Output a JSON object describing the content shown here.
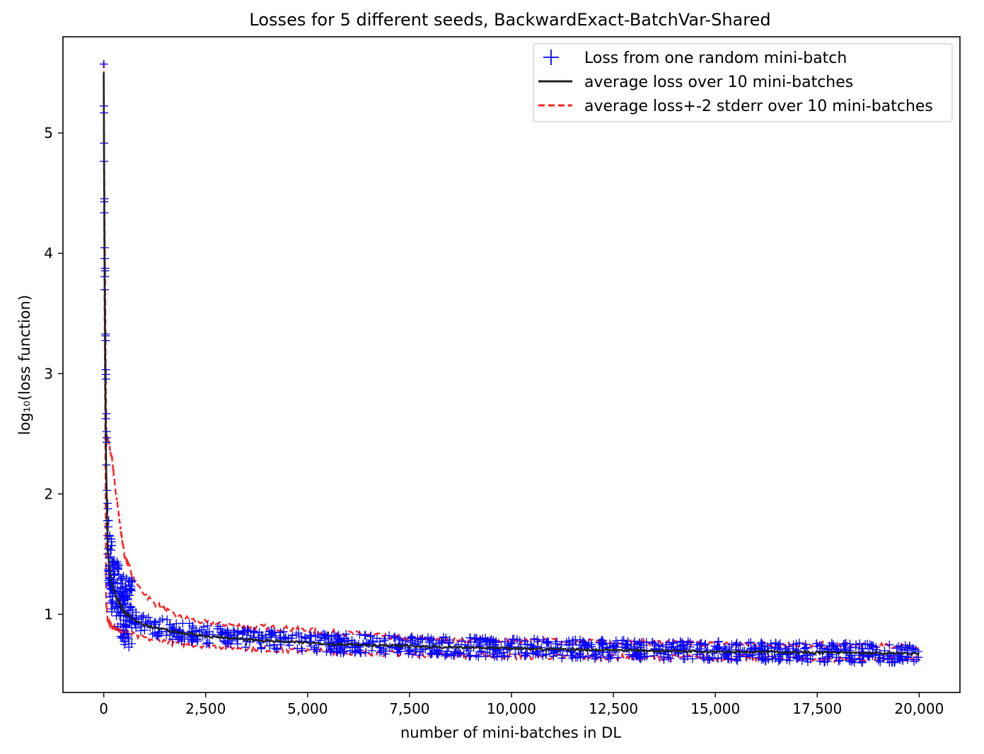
{
  "chart_data": {
    "type": "line",
    "title": "Losses for 5 different seeds, BackwardExact-BatchVar-Shared",
    "xlabel": "number of mini-batches in DL",
    "ylabel": "log₁₀(loss function)",
    "xlim": [
      -1000,
      21000
    ],
    "ylim": [
      0.35,
      5.8
    ],
    "x_ticks": [
      0,
      2500,
      5000,
      7500,
      10000,
      12500,
      15000,
      17500,
      20000
    ],
    "x_tick_labels": [
      "0",
      "2,500",
      "5,000",
      "7,500",
      "10,000",
      "12,500",
      "15,000",
      "17,500",
      "20,000"
    ],
    "y_ticks": [
      1,
      2,
      3,
      4,
      5
    ],
    "y_tick_labels": [
      "1",
      "2",
      "3",
      "4",
      "5"
    ],
    "grid": false,
    "legend": {
      "position": "top-right",
      "entries": [
        {
          "label": "Loss from one random mini-batch",
          "marker": "plus",
          "color": "#0000ff"
        },
        {
          "label": "average loss over 10 mini-batches",
          "style": "solid",
          "color": "#222222"
        },
        {
          "label": "average loss+-2 stderr over 10 mini-batches",
          "style": "dashed",
          "color": "#ff2020"
        }
      ]
    },
    "series": [
      {
        "name": "Loss from one random mini-batch",
        "kind": "scatter",
        "color": "#0000ff",
        "x": [
          0,
          20,
          40,
          60,
          100,
          200,
          300,
          500,
          800,
          1200,
          1800,
          2500,
          3500,
          4500,
          5500,
          6500,
          7500,
          8500,
          10000,
          12000,
          14000,
          16000,
          18000,
          20000
        ],
        "y": [
          5.6,
          4.0,
          3.6,
          2.6,
          1.6,
          1.3,
          1.2,
          1.05,
          0.95,
          0.9,
          0.86,
          0.83,
          0.8,
          0.78,
          0.76,
          0.75,
          0.74,
          0.73,
          0.72,
          0.71,
          0.7,
          0.69,
          0.68,
          0.67
        ]
      },
      {
        "name": "average loss over 10 mini-batches",
        "kind": "line",
        "color": "#222222",
        "x": [
          0,
          20,
          40,
          60,
          100,
          200,
          300,
          500,
          800,
          1200,
          1800,
          2500,
          3500,
          4500,
          5500,
          6500,
          7500,
          8500,
          10000,
          12000,
          14000,
          16000,
          18000,
          20000
        ],
        "y": [
          5.5,
          3.9,
          2.9,
          2.2,
          1.5,
          1.25,
          1.15,
          1.02,
          0.94,
          0.89,
          0.85,
          0.82,
          0.79,
          0.77,
          0.755,
          0.745,
          0.735,
          0.725,
          0.715,
          0.705,
          0.695,
          0.688,
          0.68,
          0.672
        ]
      },
      {
        "name": "average loss+-2 stderr over 10 mini-batches",
        "kind": "band",
        "color": "#ff2020",
        "x": [
          0,
          20,
          40,
          60,
          100,
          200,
          300,
          500,
          800,
          1200,
          1800,
          2500,
          3500,
          4500,
          5500,
          6500,
          7500,
          8500,
          10000,
          12000,
          14000,
          16000,
          18000,
          20000
        ],
        "y_upper": [
          5.62,
          4.3,
          3.6,
          2.5,
          2.45,
          2.3,
          2.0,
          1.5,
          1.25,
          1.1,
          0.98,
          0.93,
          0.9,
          0.88,
          0.85,
          0.83,
          0.8,
          0.79,
          0.78,
          0.77,
          0.76,
          0.75,
          0.74,
          0.73
        ],
        "y_lower": [
          5.3,
          3.5,
          2.4,
          1.1,
          0.95,
          0.9,
          0.88,
          0.85,
          0.82,
          0.79,
          0.76,
          0.74,
          0.72,
          0.7,
          0.69,
          0.68,
          0.67,
          0.66,
          0.65,
          0.645,
          0.64,
          0.635,
          0.63,
          0.625
        ]
      }
    ]
  }
}
